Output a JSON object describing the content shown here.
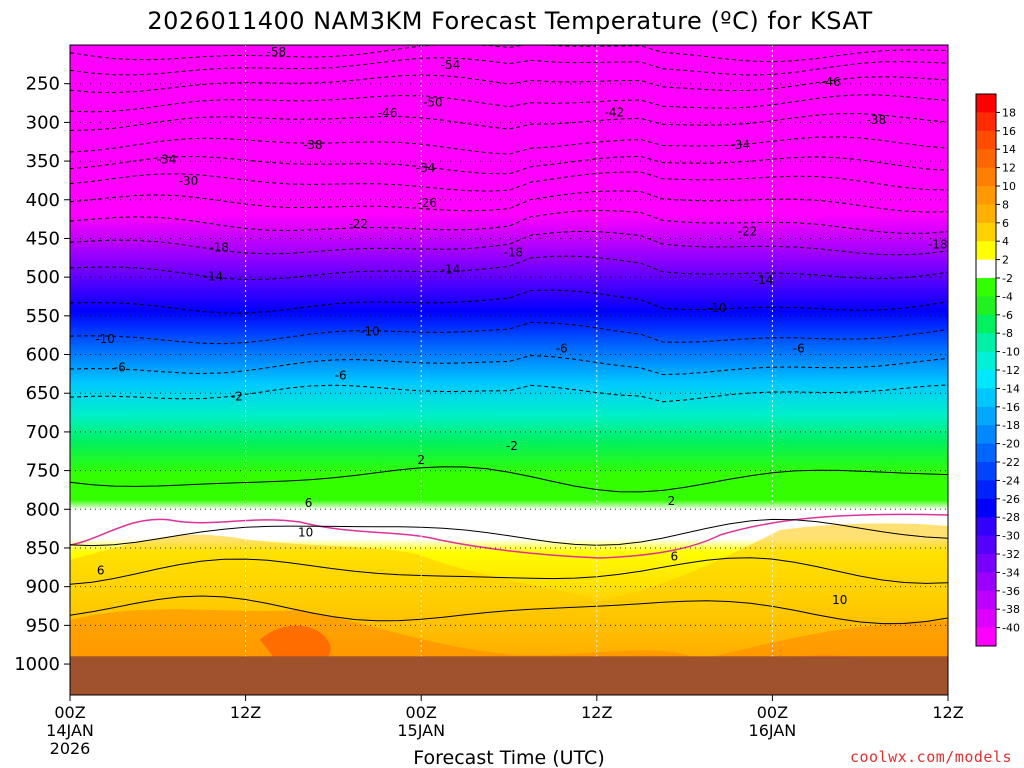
{
  "chart_data": {
    "type": "heatmap",
    "title": "2026011400 NAM3KM Forecast Temperature (ºC) for KSAT",
    "xlabel": "Forecast Time (UTC)",
    "ylabel": "",
    "watermark": "coolwx.com/models",
    "xlim_hours": [
      0,
      60
    ],
    "ylim_hpa": [
      1040,
      200
    ],
    "x_ticks": [
      {
        "hour": 0,
        "lines": [
          "00Z",
          "14JAN",
          "2026"
        ]
      },
      {
        "hour": 12,
        "lines": [
          "12Z"
        ]
      },
      {
        "hour": 24,
        "lines": [
          "00Z",
          "15JAN"
        ]
      },
      {
        "hour": 36,
        "lines": [
          "12Z"
        ]
      },
      {
        "hour": 48,
        "lines": [
          "00Z",
          "16JAN"
        ]
      },
      {
        "hour": 60,
        "lines": [
          "12Z"
        ]
      }
    ],
    "y_ticks": [
      "250",
      "300",
      "350",
      "400",
      "450",
      "500",
      "550",
      "600",
      "650",
      "700",
      "750",
      "800",
      "850",
      "900",
      "950",
      "1000"
    ],
    "y_tick_values": [
      250,
      300,
      350,
      400,
      450,
      500,
      550,
      600,
      650,
      700,
      750,
      800,
      850,
      900,
      950,
      1000
    ],
    "ground_top_hpa": 990,
    "surface_color": "#a0522d",
    "colorbar": {
      "labels": [
        "18",
        "16",
        "14",
        "12",
        "10",
        "8",
        "6",
        "4",
        "2",
        "-2",
        "-4",
        "-6",
        "-8",
        "-10",
        "-12",
        "-14",
        "-16",
        "-18",
        "-20",
        "-22",
        "-24",
        "-26",
        "-28",
        "-30",
        "-32",
        "-34",
        "-36",
        "-38",
        "-40"
      ],
      "colors": [
        "#ff0000",
        "#ff2a00",
        "#ff4c00",
        "#ff6600",
        "#ff8000",
        "#ff9900",
        "#ffb000",
        "#ffd000",
        "#ffff00",
        "#ffffff",
        "#33ff00",
        "#22f022",
        "#00f060",
        "#00f0a8",
        "#00f0d8",
        "#00e8ff",
        "#00c8ff",
        "#00a8ff",
        "#0088ff",
        "#0066ff",
        "#0044ff",
        "#0022ff",
        "#0000ff",
        "#3300ff",
        "#5500ff",
        "#7700ff",
        "#9900ff",
        "#bb00ff",
        "#dd00ff",
        "#ff00ff"
      ]
    },
    "contour_labels": [
      {
        "text": "-58",
        "hour": 14.1,
        "hpa": 209
      },
      {
        "text": "-54",
        "hour": 26.0,
        "hpa": 226
      },
      {
        "text": "-50",
        "hour": 24.8,
        "hpa": 274
      },
      {
        "text": "-46",
        "hour": 52.0,
        "hpa": 248
      },
      {
        "text": "-46",
        "hour": 21.7,
        "hpa": 288
      },
      {
        "text": "-42",
        "hour": 37.2,
        "hpa": 287
      },
      {
        "text": "-38",
        "hour": 55.1,
        "hpa": 297
      },
      {
        "text": "-38",
        "hour": 16.6,
        "hpa": 329
      },
      {
        "text": "-34",
        "hour": 45.8,
        "hpa": 329
      },
      {
        "text": "-34",
        "hour": 6.6,
        "hpa": 348
      },
      {
        "text": "-34",
        "hour": 24.3,
        "hpa": 359
      },
      {
        "text": "-30",
        "hour": 8.1,
        "hpa": 376
      },
      {
        "text": "-26",
        "hour": 24.4,
        "hpa": 404
      },
      {
        "text": "-22",
        "hour": 19.7,
        "hpa": 431
      },
      {
        "text": "-22",
        "hour": 46.3,
        "hpa": 441
      },
      {
        "text": "-18",
        "hour": 10.2,
        "hpa": 462
      },
      {
        "text": "-18",
        "hour": 59.3,
        "hpa": 458
      },
      {
        "text": "-18",
        "hour": 30.3,
        "hpa": 468
      },
      {
        "text": "-14",
        "hour": 26.0,
        "hpa": 490
      },
      {
        "text": "-14",
        "hour": 9.8,
        "hpa": 499
      },
      {
        "text": "-14",
        "hour": 47.4,
        "hpa": 504
      },
      {
        "text": "-10",
        "hour": 44.2,
        "hpa": 540
      },
      {
        "text": "-10",
        "hour": 20.5,
        "hpa": 570
      },
      {
        "text": "-10",
        "hour": 2.4,
        "hpa": 580
      },
      {
        "text": "-6",
        "hour": 33.6,
        "hpa": 592
      },
      {
        "text": "-6",
        "hour": 49.8,
        "hpa": 592
      },
      {
        "text": "-6",
        "hour": 3.4,
        "hpa": 617
      },
      {
        "text": "-6",
        "hour": 18.5,
        "hpa": 627
      },
      {
        "text": "-2",
        "hour": 11.4,
        "hpa": 654
      },
      {
        "text": "-2",
        "hour": 30.2,
        "hpa": 718
      },
      {
        "text": "2",
        "hour": 24.0,
        "hpa": 736
      },
      {
        "text": "2",
        "hour": 41.1,
        "hpa": 789
      },
      {
        "text": "6",
        "hour": 16.3,
        "hpa": 792
      },
      {
        "text": "6",
        "hour": 41.3,
        "hpa": 861
      },
      {
        "text": "6",
        "hour": 2.1,
        "hpa": 879
      },
      {
        "text": "10",
        "hour": 16.1,
        "hpa": 830
      },
      {
        "text": "10",
        "hour": 52.6,
        "hpa": 917
      }
    ]
  }
}
